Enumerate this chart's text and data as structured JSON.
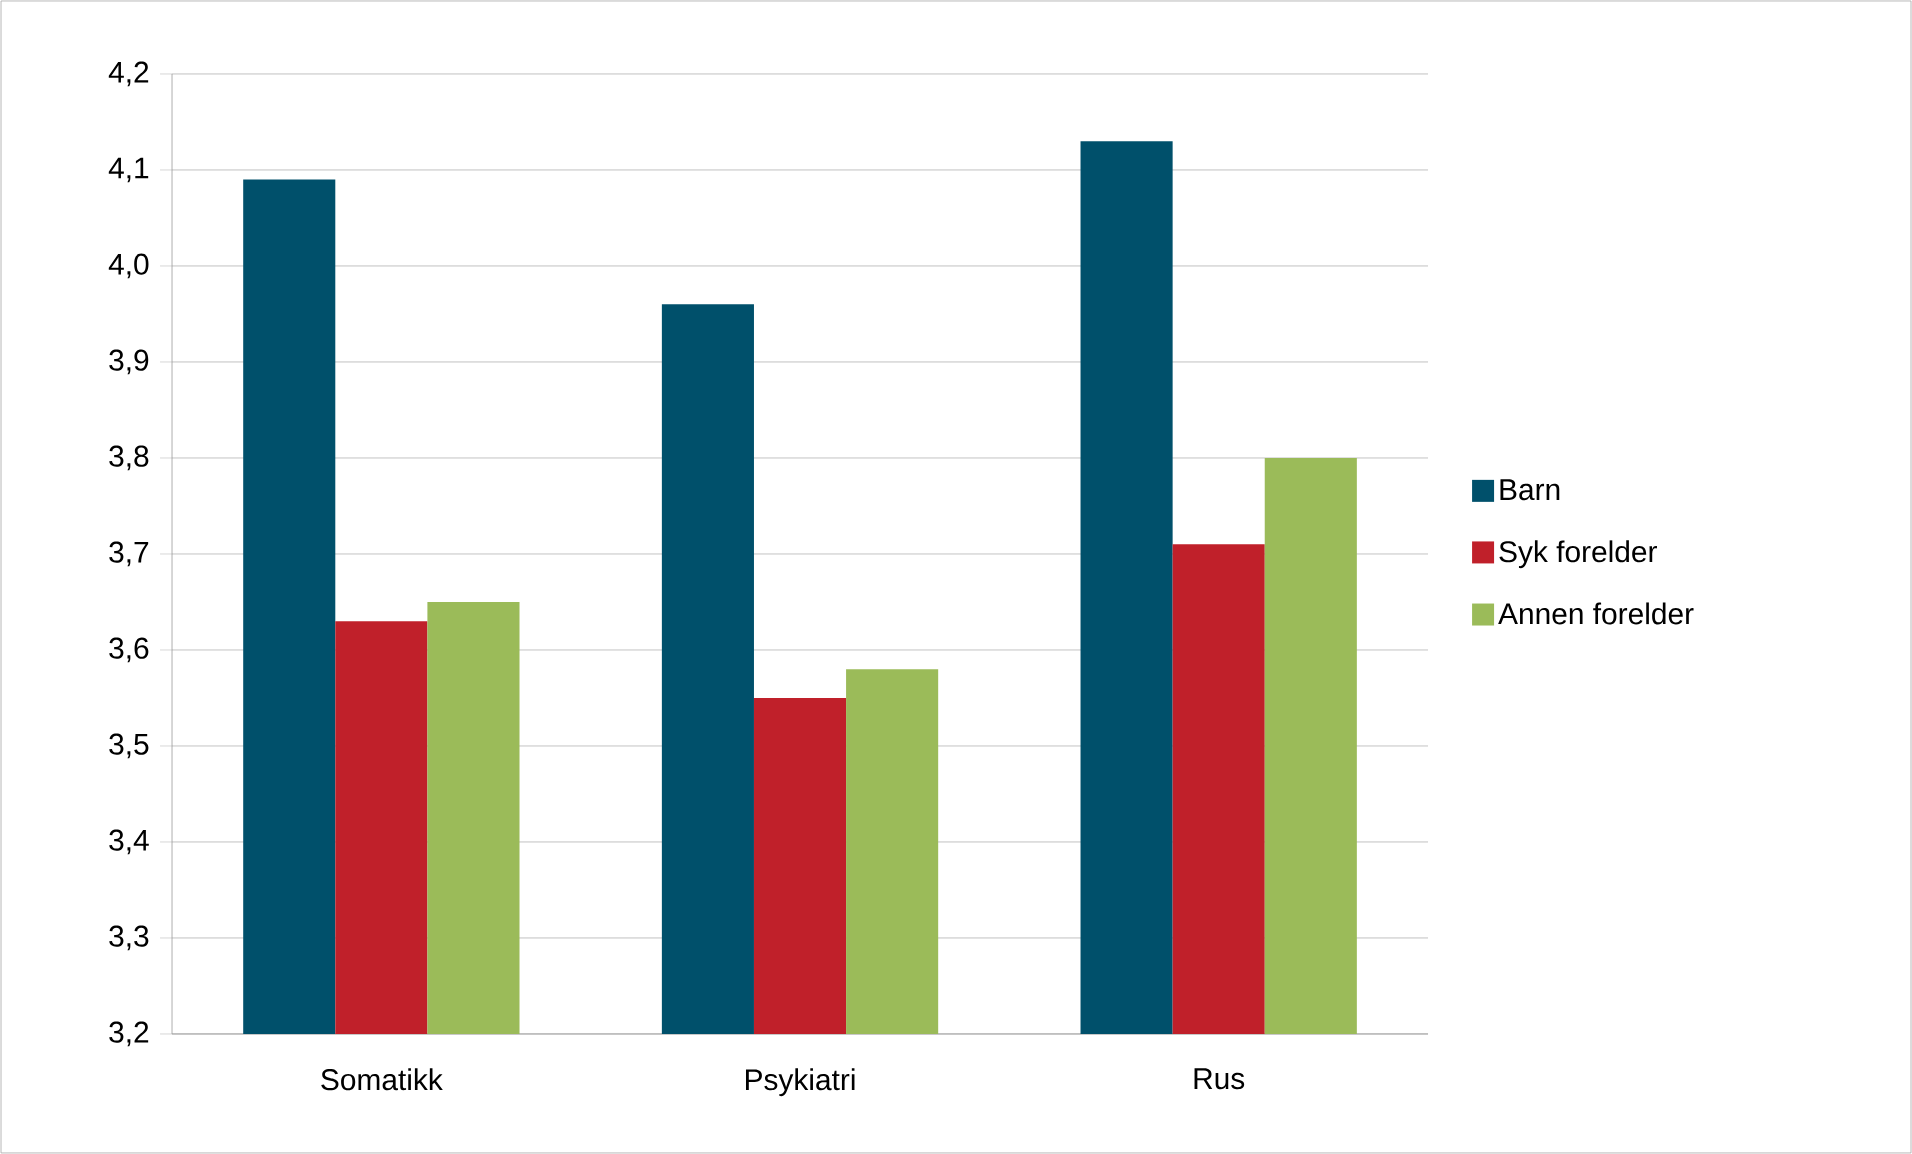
{
  "chart_data": {
    "type": "bar",
    "categories": [
      "Somatikk",
      "Psykiatri",
      "Rus"
    ],
    "series": [
      {
        "name": "Barn",
        "color": "#00506b",
        "values": [
          4.09,
          3.96,
          4.13
        ]
      },
      {
        "name": "Syk forelder",
        "color": "#c0202a",
        "values": [
          3.63,
          3.55,
          3.71
        ]
      },
      {
        "name": "Annen forelder",
        "color": "#9bbb59",
        "values": [
          3.65,
          3.58,
          3.8
        ]
      }
    ],
    "ylim": [
      3.2,
      4.2
    ],
    "yticks": [
      {
        "value": 3.2,
        "label": "3,2"
      },
      {
        "value": 3.3,
        "label": "3,3"
      },
      {
        "value": 3.4,
        "label": "3,4"
      },
      {
        "value": 3.5,
        "label": "3,5"
      },
      {
        "value": 3.6,
        "label": "3,6"
      },
      {
        "value": 3.7,
        "label": "3,7"
      },
      {
        "value": 3.8,
        "label": "3,8"
      },
      {
        "value": 3.9,
        "label": "3,9"
      },
      {
        "value": 4.0,
        "label": "4,0"
      },
      {
        "value": 4.1,
        "label": "4,1"
      },
      {
        "value": 4.2,
        "label": "4,2"
      }
    ],
    "grid": "y",
    "legend": "right"
  }
}
